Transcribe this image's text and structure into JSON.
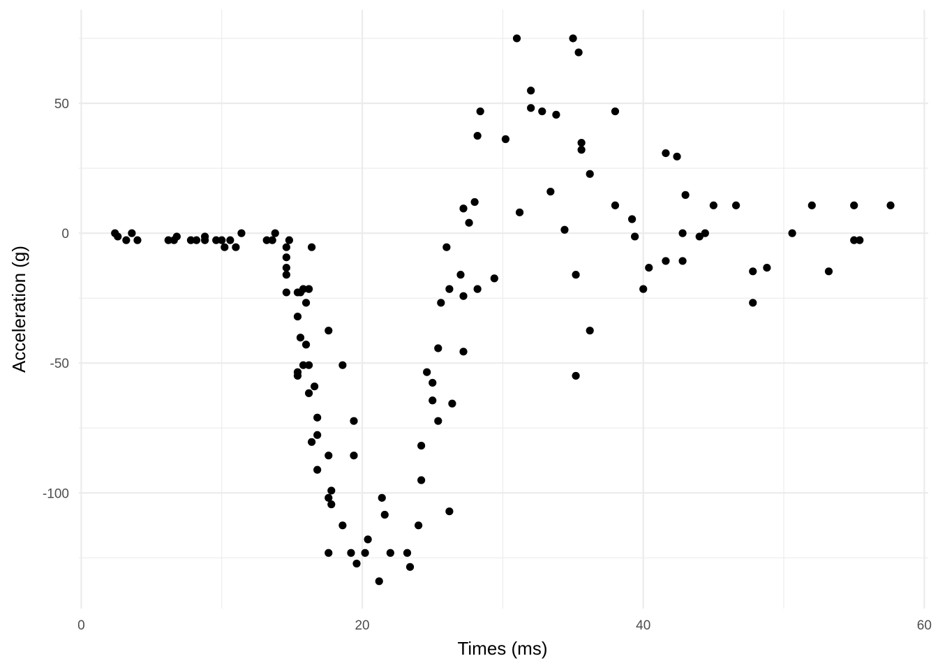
{
  "chart_data": {
    "type": "scatter",
    "title": "",
    "xlabel": "Times (ms)",
    "ylabel": "Acceleration (g)",
    "xlim": [
      -0.17,
      60.28
    ],
    "ylim": [
      -144.53,
      86.01
    ],
    "x_ticks": [
      0,
      20,
      40,
      60
    ],
    "y_ticks": [
      -100,
      -50,
      0,
      50
    ],
    "x_tick_labels": [
      "0",
      "20",
      "40",
      "60"
    ],
    "y_tick_labels": [
      "-100",
      "-50",
      "0",
      "50"
    ],
    "grid": true,
    "legend": "none",
    "point_color": "#000000",
    "x": [
      2.4,
      2.6,
      3.2,
      3.6,
      4.0,
      6.2,
      6.6,
      6.8,
      7.8,
      8.2,
      8.8,
      8.8,
      9.6,
      10.0,
      10.2,
      10.6,
      11.0,
      11.4,
      13.2,
      13.6,
      13.8,
      14.6,
      14.6,
      14.6,
      14.6,
      14.6,
      14.8,
      15.4,
      15.4,
      15.4,
      15.4,
      15.6,
      15.6,
      15.8,
      15.8,
      16.0,
      16.0,
      16.2,
      16.2,
      16.2,
      16.4,
      16.4,
      16.6,
      16.8,
      16.8,
      16.8,
      17.6,
      17.6,
      17.6,
      17.6,
      17.8,
      17.8,
      18.6,
      18.6,
      19.2,
      19.4,
      19.4,
      19.6,
      20.2,
      20.4,
      21.2,
      21.4,
      21.6,
      22.0,
      23.2,
      23.4,
      24.0,
      24.2,
      24.2,
      24.6,
      25.0,
      25.0,
      25.4,
      25.4,
      25.6,
      26.0,
      26.2,
      26.2,
      26.4,
      27.0,
      27.2,
      27.2,
      27.2,
      27.6,
      28.0,
      28.2,
      28.2,
      28.4,
      29.4,
      30.2,
      31.0,
      31.2,
      32.0,
      32.0,
      32.8,
      33.4,
      33.8,
      34.4,
      35.0,
      35.2,
      35.2,
      35.4,
      35.6,
      35.6,
      36.2,
      36.2,
      38.0,
      38.0,
      39.2,
      39.4,
      40.0,
      40.4,
      41.6,
      41.6,
      42.4,
      42.8,
      42.8,
      43.0,
      44.0,
      44.4,
      45.0,
      46.6,
      47.8,
      47.8,
      48.8,
      50.6,
      52.0,
      53.2,
      55.0,
      55.0,
      55.4,
      57.6
    ],
    "y": [
      0.0,
      -1.3,
      -2.7,
      0.0,
      -2.7,
      -2.7,
      -2.7,
      -1.3,
      -2.7,
      -2.7,
      -1.3,
      -2.7,
      -2.7,
      -2.7,
      -5.4,
      -2.7,
      -5.4,
      0.0,
      -2.7,
      -2.7,
      0.0,
      -5.4,
      -9.3,
      -13.3,
      -16.0,
      -22.8,
      -2.7,
      -22.8,
      -32.1,
      -53.5,
      -54.9,
      -40.2,
      -22.8,
      -50.8,
      -21.5,
      -42.9,
      -26.8,
      -21.5,
      -50.8,
      -61.6,
      -5.4,
      -80.4,
      -59.0,
      -77.7,
      -71.0,
      -91.1,
      -37.5,
      -85.6,
      -101.9,
      -123.1,
      -99.1,
      -104.4,
      -50.8,
      -112.5,
      -123.1,
      -72.3,
      -85.6,
      -127.2,
      -123.1,
      -117.9,
      -134.0,
      -101.9,
      -108.4,
      -123.1,
      -123.1,
      -128.5,
      -112.5,
      -95.1,
      -81.8,
      -53.5,
      -57.6,
      -64.4,
      -44.3,
      -72.3,
      -26.8,
      -5.4,
      -21.5,
      -107.1,
      -65.6,
      -16.0,
      -45.6,
      -24.2,
      9.5,
      4.0,
      12.0,
      37.5,
      -21.5,
      46.9,
      -17.4,
      36.2,
      75.0,
      8.0,
      54.9,
      48.2,
      46.9,
      16.0,
      45.6,
      1.3,
      75.0,
      -16.0,
      -54.9,
      69.6,
      34.8,
      32.1,
      22.8,
      -37.5,
      46.9,
      10.7,
      5.4,
      -1.3,
      -21.5,
      -13.3,
      30.8,
      -10.7,
      29.5,
      0.0,
      -10.7,
      14.7,
      -1.3,
      0.0,
      10.7,
      10.7,
      -14.7,
      -26.8,
      -13.3,
      0.0,
      10.7,
      -14.7,
      10.7,
      -2.7,
      -2.7,
      10.7
    ]
  }
}
